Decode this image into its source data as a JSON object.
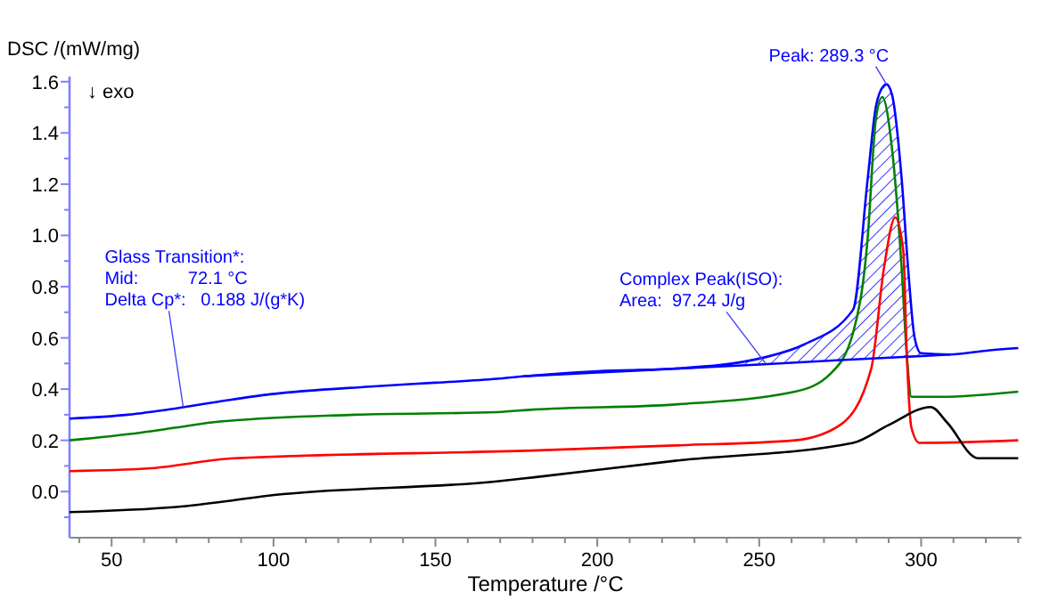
{
  "chart_data": {
    "type": "line",
    "xlabel": "Temperature /°C",
    "ylabel": "DSC /(mW/mg)",
    "xlim": [
      37,
      331
    ],
    "ylim": [
      -0.18,
      1.62
    ],
    "xticks": [
      {
        "value": 40,
        "label": null
      },
      50,
      {
        "value": 60,
        "label": null
      },
      {
        "value": 70,
        "label": null
      },
      {
        "value": 80,
        "label": null
      },
      {
        "value": 90,
        "label": null
      },
      100,
      {
        "value": 110,
        "label": null
      },
      {
        "value": 120,
        "label": null
      },
      {
        "value": 130,
        "label": null
      },
      {
        "value": 140,
        "label": null
      },
      150,
      {
        "value": 160,
        "label": null
      },
      {
        "value": 170,
        "label": null
      },
      {
        "value": 180,
        "label": null
      },
      {
        "value": 190,
        "label": null
      },
      200,
      {
        "value": 210,
        "label": null
      },
      {
        "value": 220,
        "label": null
      },
      {
        "value": 230,
        "label": null
      },
      {
        "value": 240,
        "label": null
      },
      250,
      {
        "value": 260,
        "label": null
      },
      {
        "value": 270,
        "label": null
      },
      {
        "value": 280,
        "label": null
      },
      {
        "value": 290,
        "label": null
      },
      300,
      {
        "value": 310,
        "label": null
      },
      {
        "value": 320,
        "label": null
      },
      {
        "value": 330,
        "label": null
      }
    ],
    "yticks": [
      {
        "value": -0.1,
        "label": null
      },
      {
        "value": 0,
        "label": "0.0"
      },
      {
        "value": 0.1,
        "label": null
      },
      0.2,
      {
        "value": 0.3,
        "label": null
      },
      0.4,
      {
        "value": 0.5,
        "label": null
      },
      0.6,
      {
        "value": 0.7,
        "label": null
      },
      0.8,
      {
        "value": 0.9,
        "label": null
      },
      {
        "value": 1,
        "label": "1.0"
      },
      {
        "value": 1.1,
        "label": null
      },
      1.2,
      {
        "value": 1.3,
        "label": null
      },
      1.4,
      {
        "value": 1.5,
        "label": null
      },
      1.6
    ],
    "grid": false,
    "marker": "none",
    "line_style": "solid",
    "series": [
      {
        "color": "#0000ff",
        "x": [
          37,
          55,
          70,
          85,
          99,
          130,
          150,
          169,
          177,
          200,
          224,
          252,
          264,
          279,
          283.5,
          286,
          288.5,
          289.3,
          291,
          294,
          296,
          298,
          300,
          309,
          320,
          330
        ],
        "values": [
          0.285,
          0.3,
          0.325,
          0.355,
          0.38,
          0.41,
          0.425,
          0.44,
          0.45,
          0.47,
          0.48,
          0.525,
          0.575,
          0.71,
          1.22,
          1.5,
          1.585,
          1.59,
          1.55,
          1.22,
          0.87,
          0.6,
          0.54,
          0.535,
          0.55,
          0.56
        ],
        "lower": [
          null,
          null,
          null,
          null,
          null,
          null,
          null,
          null,
          0.45,
          0.465,
          0.48,
          0.498,
          0.506,
          0.516,
          0.519,
          0.52,
          0.522,
          0.523,
          0.523,
          0.525,
          0.527,
          0.528,
          0.529,
          0.535,
          null,
          null
        ],
        "upper": [
          null,
          null,
          null,
          null,
          null,
          null,
          null,
          null,
          0.45,
          0.47,
          0.48,
          0.525,
          0.575,
          0.71,
          1.22,
          1.5,
          1.585,
          1.59,
          1.55,
          1.22,
          0.87,
          0.6,
          0.54,
          0.535,
          null,
          null
        ]
      },
      {
        "color": "#008000",
        "x": [
          37,
          59,
          70,
          81,
          125,
          169,
          180,
          224,
          261,
          272,
          279,
          283.5,
          286,
          288,
          291,
          294,
          295.6,
          297,
          306,
          330
        ],
        "values": [
          0.2,
          0.23,
          0.25,
          0.27,
          0.3,
          0.31,
          0.32,
          0.34,
          0.39,
          0.46,
          0.62,
          0.99,
          1.45,
          1.54,
          1.34,
          0.87,
          0.53,
          0.37,
          0.37,
          0.39
        ]
      },
      {
        "color": "#ff0000",
        "x": [
          37,
          61,
          88,
          180,
          224,
          261,
          275,
          284.6,
          288.5,
          292,
          294.5,
          295.6,
          297,
          299.5,
          330
        ],
        "values": [
          0.08,
          0.09,
          0.13,
          0.16,
          0.18,
          0.2,
          0.26,
          0.48,
          0.87,
          1.07,
          0.94,
          0.53,
          0.25,
          0.19,
          0.2
        ]
      },
      {
        "color": "#0000ff",
        "x": [
          177,
          200,
          225,
          250,
          275,
          300,
          309
        ],
        "values": [
          0.45,
          0.465,
          0.48,
          0.496,
          0.513,
          0.529,
          0.535
        ]
      },
      {
        "color": "#000000",
        "x": [
          37,
          70,
          103,
          169,
          180,
          224,
          279,
          290,
          303,
          308,
          317.6,
          330
        ],
        "values": [
          -0.08,
          -0.06,
          -0.01,
          0.04,
          0.055,
          0.12,
          0.19,
          0.26,
          0.33,
          0.27,
          0.13,
          0.13
        ]
      }
    ],
    "annotations": [
      "↓ exo",
      {
        "text": "Glass Transition*:\nMid:          72.1 °C\nDelta Cp*:   0.188 J/(g*K)",
        "x": 72.1,
        "y": 0.33
      },
      {
        "text": "Complex Peak(ISO):\nArea:  97.24 J/g",
        "x": 252,
        "y": 0.5
      },
      {
        "text": "Peak: 289.3 °C",
        "x": 289.3,
        "y": 1.59
      }
    ]
  }
}
